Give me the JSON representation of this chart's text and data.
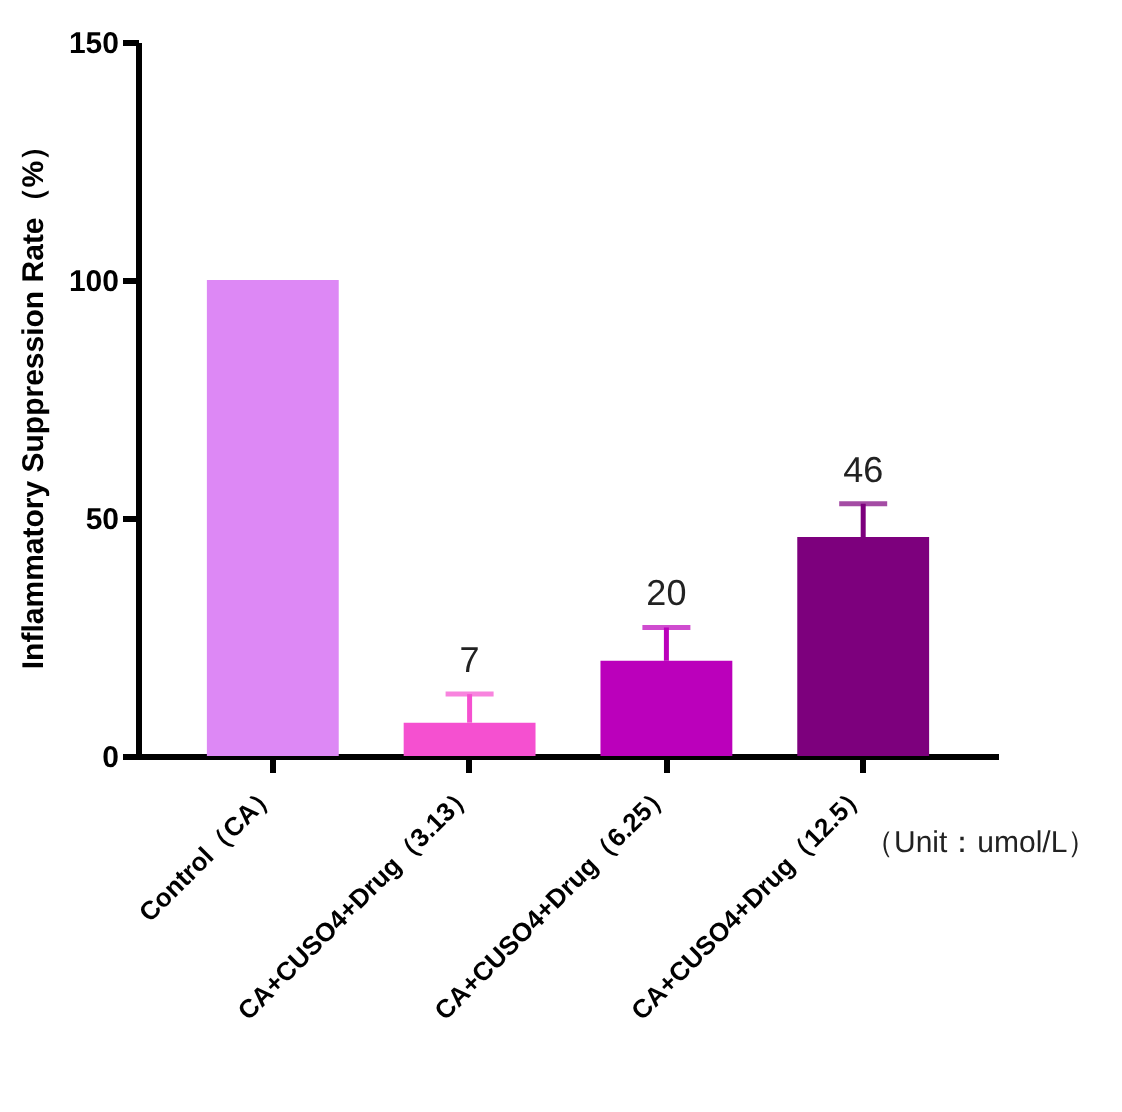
{
  "chart_data": {
    "type": "bar",
    "ylabel": "Inflammatory Suppression Rate（%）",
    "categories": [
      "Control（CA）",
      "CA+CUSO4+Drug（3.13）",
      "CA+CUSO4+Drug（6.25）",
      "CA+CUSO4+Drug（12.5）"
    ],
    "values": [
      100,
      7,
      20,
      46
    ],
    "colors": [
      "#dd88f5",
      "#f550d0",
      "#bb00bb",
      "#7d007d"
    ],
    "errors": [
      null,
      [
        7,
        13
      ],
      [
        20,
        27
      ],
      [
        46,
        53
      ]
    ],
    "value_labels": [
      null,
      "7",
      "20",
      "46"
    ],
    "ylim": [
      0,
      150
    ],
    "yticks": [
      0,
      50,
      100,
      150
    ],
    "grid": false,
    "annotations": [
      "（Unit：umol/L）"
    ]
  }
}
